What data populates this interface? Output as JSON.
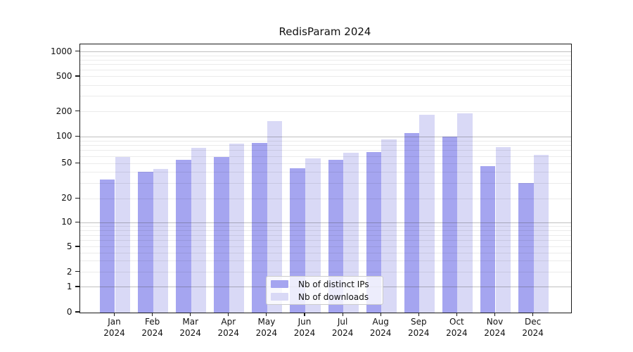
{
  "chart_data": {
    "type": "bar",
    "title": "RedisParam 2024",
    "categories": [
      "Jan",
      "Feb",
      "Mar",
      "Apr",
      "May",
      "Jun",
      "Jul",
      "Aug",
      "Sep",
      "Oct",
      "Nov",
      "Dec"
    ],
    "x_year_label": "2024",
    "series": [
      {
        "name": "Nb of distinct IPs",
        "color": "#a5a5f0",
        "values": [
          33,
          40,
          55,
          59,
          86,
          44,
          55,
          67,
          112,
          101,
          47,
          30
        ]
      },
      {
        "name": "Nb of downloads",
        "color": "#d9d9f6",
        "values": [
          59,
          43,
          75,
          84,
          155,
          57,
          66,
          94,
          183,
          189,
          76,
          63
        ]
      }
    ],
    "xlabel": "",
    "ylabel": "",
    "yticks": [
      0,
      1,
      2,
      5,
      10,
      20,
      50,
      100,
      200,
      500,
      1000
    ],
    "ylim": [
      0,
      1200
    ],
    "yscale": "log-like with zero baseline",
    "grid_major": [
      1,
      10,
      100,
      1000
    ],
    "legend_position": "lower center"
  }
}
